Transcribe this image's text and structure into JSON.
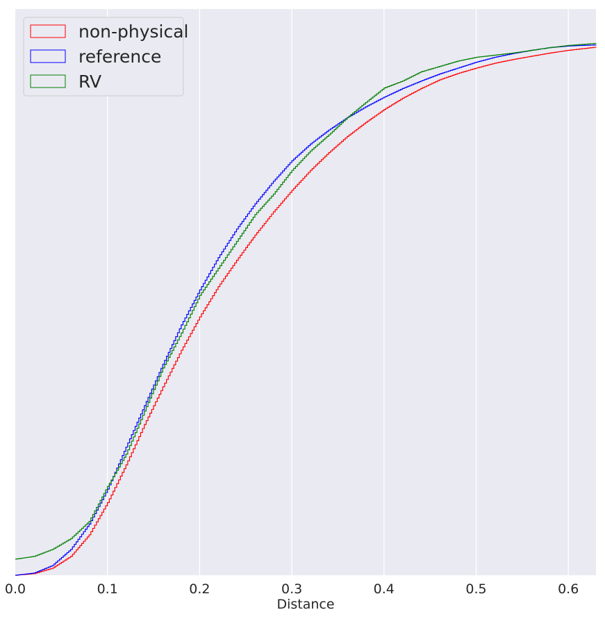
{
  "chart_data": {
    "type": "line",
    "title": "",
    "xlabel": "Distance",
    "ylabel": "",
    "xlim": [
      0.0,
      0.63
    ],
    "ylim": [
      0.0,
      1.0
    ],
    "x_ticks": [
      "0.0",
      "0.1",
      "0.2",
      "0.3",
      "0.4",
      "0.5",
      "0.6"
    ],
    "grid": true,
    "legend_position": "upper-left",
    "background_color": "#eaeaf2",
    "series": [
      {
        "name": "non-physical",
        "color": "#ff0000",
        "x": [
          0.0,
          0.02,
          0.04,
          0.06,
          0.08,
          0.1,
          0.12,
          0.14,
          0.16,
          0.18,
          0.2,
          0.22,
          0.24,
          0.26,
          0.28,
          0.3,
          0.32,
          0.34,
          0.36,
          0.38,
          0.4,
          0.42,
          0.44,
          0.46,
          0.48,
          0.5,
          0.52,
          0.54,
          0.56,
          0.58,
          0.6,
          0.63
        ],
        "y": [
          0.0,
          0.003,
          0.013,
          0.035,
          0.075,
          0.135,
          0.205,
          0.28,
          0.35,
          0.418,
          0.48,
          0.536,
          0.585,
          0.632,
          0.675,
          0.715,
          0.752,
          0.785,
          0.815,
          0.841,
          0.865,
          0.886,
          0.904,
          0.92,
          0.932,
          0.942,
          0.951,
          0.958,
          0.964,
          0.97,
          0.975,
          0.981
        ]
      },
      {
        "name": "reference",
        "color": "#0000ff",
        "x": [
          0.0,
          0.02,
          0.04,
          0.06,
          0.08,
          0.1,
          0.12,
          0.14,
          0.16,
          0.18,
          0.2,
          0.22,
          0.24,
          0.26,
          0.28,
          0.3,
          0.32,
          0.34,
          0.36,
          0.38,
          0.4,
          0.42,
          0.44,
          0.46,
          0.48,
          0.5,
          0.52,
          0.54,
          0.56,
          0.58,
          0.6,
          0.63
        ],
        "y": [
          0.0,
          0.004,
          0.018,
          0.048,
          0.095,
          0.16,
          0.238,
          0.315,
          0.392,
          0.465,
          0.53,
          0.59,
          0.643,
          0.69,
          0.732,
          0.77,
          0.801,
          0.827,
          0.85,
          0.87,
          0.888,
          0.904,
          0.918,
          0.931,
          0.942,
          0.953,
          0.962,
          0.969,
          0.975,
          0.98,
          0.983,
          0.985
        ]
      },
      {
        "name": "RV",
        "color": "#008000",
        "x": [
          0.0,
          0.02,
          0.04,
          0.06,
          0.08,
          0.1,
          0.12,
          0.14,
          0.16,
          0.18,
          0.2,
          0.22,
          0.24,
          0.26,
          0.28,
          0.3,
          0.32,
          0.34,
          0.36,
          0.38,
          0.4,
          0.42,
          0.44,
          0.46,
          0.48,
          0.5,
          0.52,
          0.54,
          0.56,
          0.58,
          0.6,
          0.63
        ],
        "y": [
          0.03,
          0.035,
          0.048,
          0.068,
          0.1,
          0.165,
          0.225,
          0.305,
          0.385,
          0.45,
          0.52,
          0.57,
          0.62,
          0.67,
          0.708,
          0.752,
          0.788,
          0.818,
          0.85,
          0.878,
          0.905,
          0.918,
          0.935,
          0.945,
          0.955,
          0.962,
          0.966,
          0.97,
          0.975,
          0.98,
          0.984,
          0.988
        ]
      }
    ]
  }
}
